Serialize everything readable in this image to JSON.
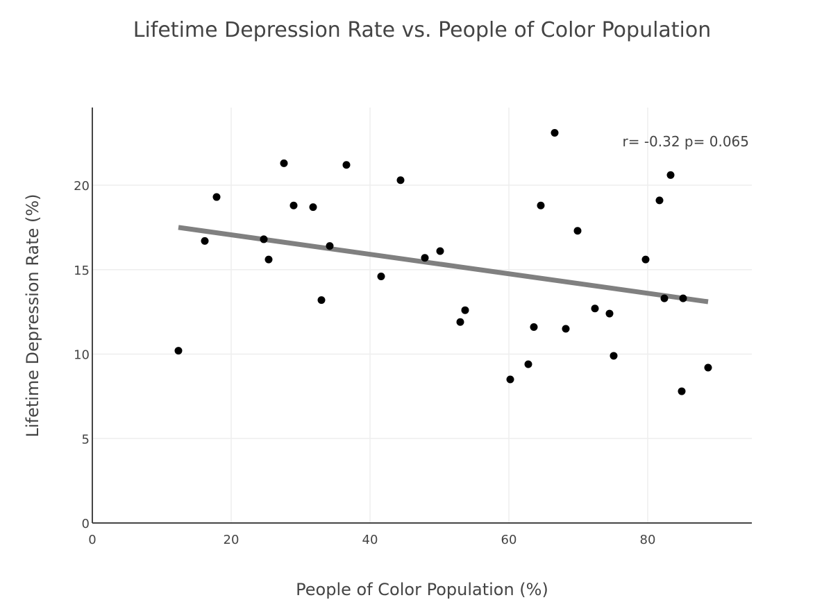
{
  "chart_data": {
    "type": "scatter",
    "title": "Lifetime Depression Rate vs. People of Color Population",
    "xlabel": "People of Color Population (%)",
    "ylabel": "Lifetime Depression Rate (%)",
    "xlim": [
      0,
      95
    ],
    "ylim": [
      0,
      24.6
    ],
    "xticks": [
      0,
      20,
      40,
      60,
      80
    ],
    "yticks": [
      0,
      5,
      10,
      15,
      20
    ],
    "grid": true,
    "legend": "none",
    "annotation": "r= -0.32 p= 0.065",
    "points": [
      {
        "x": 12.4,
        "y": 10.2
      },
      {
        "x": 16.2,
        "y": 16.7
      },
      {
        "x": 17.9,
        "y": 19.3
      },
      {
        "x": 24.7,
        "y": 16.8
      },
      {
        "x": 25.4,
        "y": 15.6
      },
      {
        "x": 27.6,
        "y": 21.3
      },
      {
        "x": 29.0,
        "y": 18.8
      },
      {
        "x": 31.8,
        "y": 18.7
      },
      {
        "x": 33.0,
        "y": 13.2
      },
      {
        "x": 34.2,
        "y": 16.4
      },
      {
        "x": 36.6,
        "y": 21.2
      },
      {
        "x": 41.6,
        "y": 14.6
      },
      {
        "x": 44.4,
        "y": 20.3
      },
      {
        "x": 47.9,
        "y": 15.7
      },
      {
        "x": 50.1,
        "y": 16.1
      },
      {
        "x": 53.0,
        "y": 11.9
      },
      {
        "x": 53.7,
        "y": 12.6
      },
      {
        "x": 60.2,
        "y": 8.5
      },
      {
        "x": 62.8,
        "y": 9.4
      },
      {
        "x": 63.6,
        "y": 11.6
      },
      {
        "x": 64.6,
        "y": 18.8
      },
      {
        "x": 66.6,
        "y": 23.1
      },
      {
        "x": 68.2,
        "y": 11.5
      },
      {
        "x": 69.9,
        "y": 17.3
      },
      {
        "x": 72.4,
        "y": 12.7
      },
      {
        "x": 74.5,
        "y": 12.4
      },
      {
        "x": 75.1,
        "y": 9.9
      },
      {
        "x": 79.7,
        "y": 15.6
      },
      {
        "x": 81.7,
        "y": 19.1
      },
      {
        "x": 82.4,
        "y": 13.3
      },
      {
        "x": 83.3,
        "y": 20.6
      },
      {
        "x": 84.9,
        "y": 7.8
      },
      {
        "x": 85.1,
        "y": 13.3
      },
      {
        "x": 88.7,
        "y": 9.2
      }
    ],
    "trendline": {
      "x": [
        12.4,
        88.7
      ],
      "y": [
        17.5,
        13.1
      ],
      "color": "#808080"
    },
    "marker_color": "#000000"
  }
}
